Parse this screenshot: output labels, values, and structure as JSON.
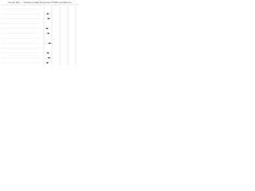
{
  "chart_data": {
    "type": "forest",
    "title": "Forest Plot — Incidence Risk Proportion & 95% Confidence",
    "categories": [
      null,
      null,
      null,
      null,
      null,
      null,
      null,
      null,
      null,
      null,
      null,
      null
    ],
    "values": [
      null,
      0.12,
      0.15,
      null,
      0.1,
      0.14,
      null,
      0.18,
      null,
      0.13,
      0.16,
      0.11
    ],
    "low": [
      null,
      0.08,
      0.1,
      null,
      0.06,
      0.1,
      null,
      0.12,
      null,
      0.09,
      0.11,
      0.07
    ],
    "high": [
      null,
      0.17,
      0.2,
      null,
      0.15,
      0.19,
      null,
      0.25,
      null,
      0.18,
      0.22,
      0.16
    ],
    "color": "#222222",
    "xlim": [
      0,
      1
    ],
    "xticks": [
      0,
      0.25,
      0.5,
      0.75,
      1
    ],
    "grid": true
  }
}
